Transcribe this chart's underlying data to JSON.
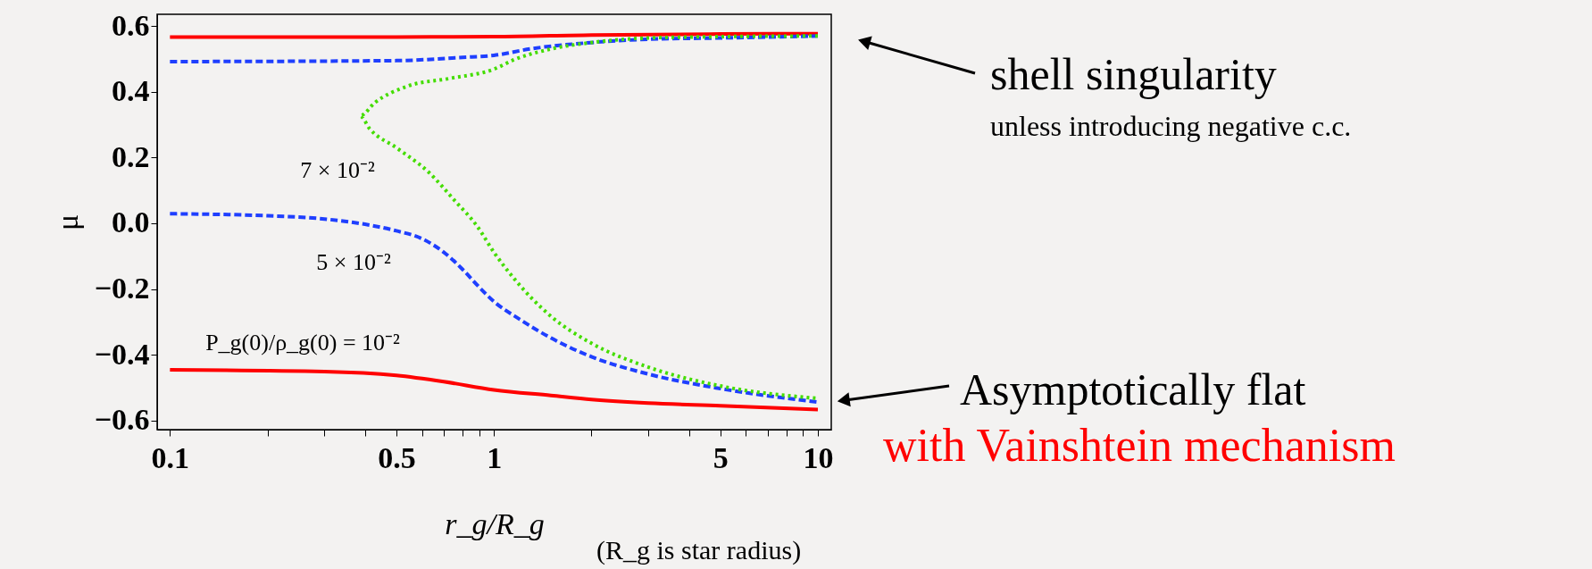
{
  "chart_data": {
    "type": "line",
    "xlabel": "r_g/R_g",
    "ylabel": "μ",
    "log": "x",
    "xlim": [
      0.0913,
      11.0
    ],
    "ylim": [
      -0.628,
      0.636
    ],
    "xticks": [
      0.1,
      {
        "value": 0.2,
        "label": null
      },
      {
        "value": 0.3,
        "label": null
      },
      {
        "value": 0.4,
        "label": null
      },
      0.5,
      {
        "value": 0.6,
        "label": null
      },
      {
        "value": 0.7,
        "label": null
      },
      {
        "value": 0.8,
        "label": null
      },
      {
        "value": 0.9,
        "label": null
      },
      1,
      {
        "value": 2,
        "label": null
      },
      {
        "value": 3,
        "label": null
      },
      {
        "value": 4,
        "label": null
      },
      5,
      {
        "value": 6,
        "label": null
      },
      {
        "value": 7,
        "label": null
      },
      {
        "value": 8,
        "label": null
      },
      {
        "value": 9,
        "label": null
      },
      10
    ],
    "yticks": [
      {
        "value": -0.6,
        "label": "−0.6"
      },
      {
        "value": -0.4,
        "label": "−0.4"
      },
      {
        "value": -0.2,
        "label": "−0.2"
      },
      {
        "value": 0,
        "label": "0.0"
      },
      0.2,
      0.4,
      0.6
    ],
    "grid": false,
    "series": [
      {
        "color": "#ff0000",
        "line_style": "solid",
        "x": [
          0.1,
          0.5,
          1,
          2,
          5,
          10
        ],
        "values": [
          0.567,
          0.567,
          0.568,
          0.573,
          0.576,
          0.577
        ]
      },
      {
        "color": "#ff0000",
        "line_style": "solid",
        "x": [
          0.1,
          0.3,
          0.5,
          0.7,
          1,
          1.5,
          2,
          3,
          5,
          10
        ],
        "values": [
          -0.446,
          -0.451,
          -0.463,
          -0.482,
          -0.507,
          -0.524,
          -0.536,
          -0.547,
          -0.555,
          -0.567
        ]
      },
      {
        "color": "#1f3fff",
        "line_style": "dashed",
        "x": [
          0.1,
          0.5,
          0.8,
          1,
          1.3,
          2,
          3,
          5,
          10
        ],
        "values": [
          0.492,
          0.495,
          0.505,
          0.511,
          0.531,
          0.55,
          0.56,
          0.564,
          0.57
        ]
      },
      {
        "color": "#1f3fff",
        "line_style": "dashed",
        "x": [
          0.1,
          0.2,
          0.3,
          0.4,
          0.5,
          0.6,
          0.7,
          0.8,
          0.9,
          1,
          1.2,
          1.5,
          2,
          3,
          5,
          10
        ],
        "values": [
          0.029,
          0.023,
          0.013,
          -0.003,
          -0.023,
          -0.047,
          -0.088,
          -0.14,
          -0.194,
          -0.238,
          -0.292,
          -0.349,
          -0.406,
          -0.459,
          -0.503,
          -0.544
        ]
      },
      {
        "color": "#44dd00",
        "line_style": "dotted",
        "x": [
          10,
          5,
          3,
          2,
          1.51,
          1.156,
          1,
          0.732,
          0.54,
          0.43,
          0.386,
          0.414,
          0.5,
          0.628,
          0.76,
          0.885,
          1,
          1.156,
          1.5,
          2,
          3,
          5,
          10
        ],
        "values": [
          0.57,
          0.568,
          0.564,
          0.55,
          0.531,
          0.498,
          0.469,
          0.441,
          0.417,
          0.368,
          0.327,
          0.287,
          0.23,
          0.156,
          0.067,
          -0.007,
          -0.088,
          -0.169,
          -0.283,
          -0.365,
          -0.438,
          -0.495,
          -0.533
        ]
      }
    ],
    "annotations": [
      "7 × 10⁻²",
      "5 × 10⁻²",
      "P_g(0)/ρ_g(0) = 10⁻²",
      "shell singularity",
      "unless introducing negative c.c.",
      "Asymptotically flat",
      "with Vainshtein mechanism",
      "(R_g is star radius)"
    ]
  }
}
